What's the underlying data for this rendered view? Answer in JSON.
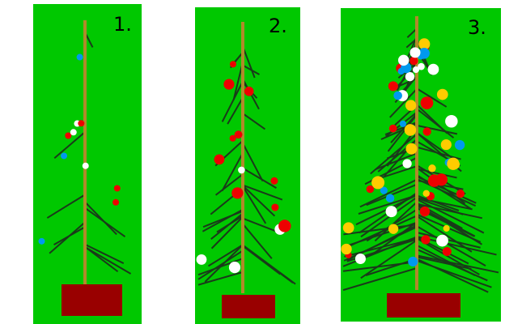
{
  "labels": [
    "1.",
    "2.",
    "3."
  ]
}
